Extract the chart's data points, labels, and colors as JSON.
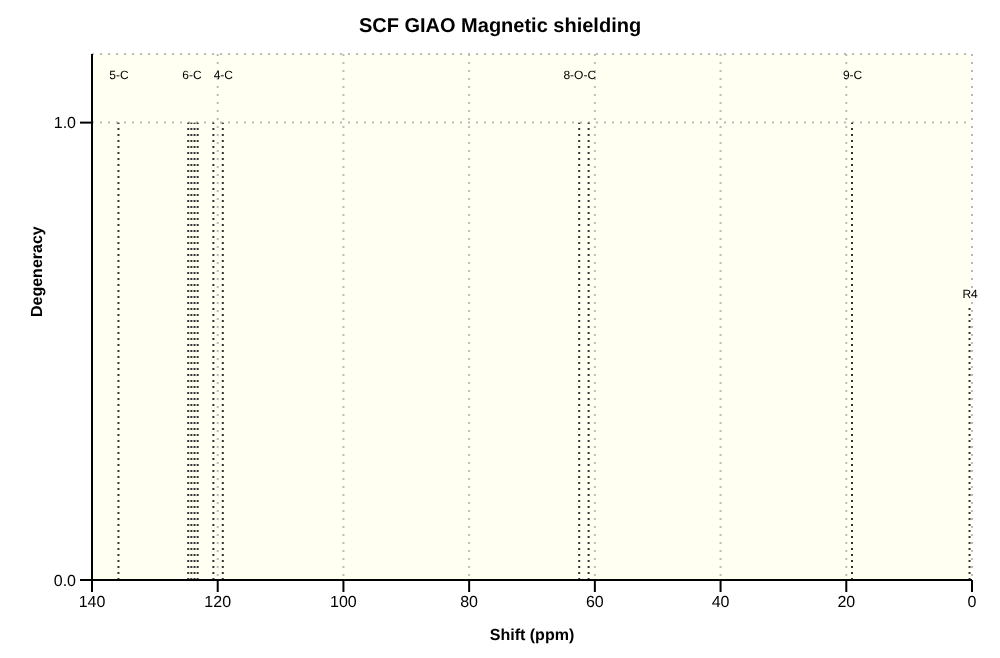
{
  "chart_data": {
    "type": "bar",
    "title": "SCF GIAO Magnetic shielding",
    "xlabel": "Shift (ppm)",
    "ylabel": "Degeneracy",
    "x": [
      135.7,
      124.6,
      124.1,
      123.6,
      123.1,
      120.6,
      119.1,
      62.4,
      60.9,
      19.0,
      0.3
    ],
    "values": [
      1,
      1,
      1,
      1,
      1,
      1,
      1,
      1,
      1,
      1,
      0.6
    ],
    "color": "#333333",
    "line_style": "dotted",
    "xlim": [
      140,
      0
    ],
    "xticks": [
      140,
      120,
      100,
      80,
      60,
      40,
      20,
      0
    ],
    "ylim": [
      0,
      1.15
    ],
    "yticks": [
      {
        "value": 0,
        "label": "0.0"
      },
      {
        "value": 1,
        "label": "1.0"
      }
    ],
    "grid": true,
    "annotations": [
      "5-C",
      "6-C",
      "4-C",
      "8-O-C",
      "9-C",
      "R4"
    ]
  }
}
